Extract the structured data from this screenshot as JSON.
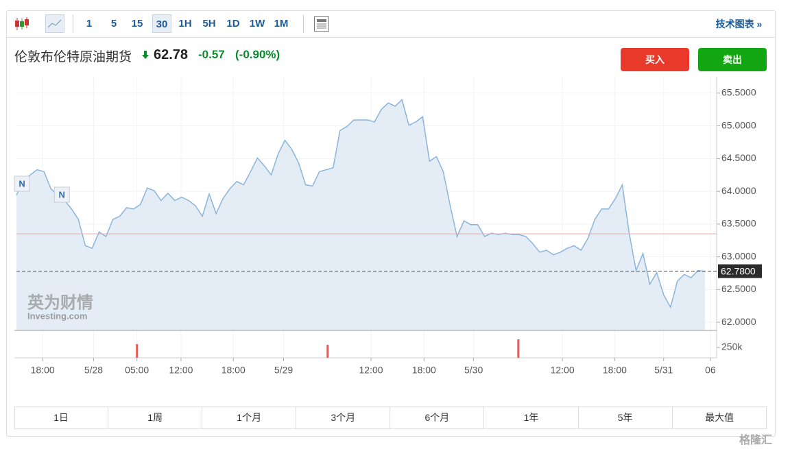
{
  "toolbar": {
    "intervals": [
      "1",
      "5",
      "15",
      "30",
      "1H",
      "5H",
      "1D",
      "1W",
      "1M"
    ],
    "active_interval": 3,
    "link": "技术图表 »"
  },
  "header": {
    "name": "伦敦布伦特原油期货",
    "price": "62.78",
    "change": "-0.57",
    "change_percent": "(-0.90%)"
  },
  "buttons": {
    "buy": "买入",
    "sell": "卖出"
  },
  "chart_data": {
    "type": "line",
    "series": [
      {
        "color": "#8ab4d9",
        "fill": "#e4edf6",
        "x": [
          0,
          1,
          2,
          3,
          4,
          5,
          6,
          7,
          8,
          9,
          10,
          11,
          12,
          13,
          14,
          15,
          16,
          17,
          18,
          19,
          20,
          21,
          22,
          23,
          24,
          25,
          26,
          27,
          28,
          29,
          30,
          31,
          32,
          33,
          34,
          35,
          36,
          37,
          38,
          39,
          40,
          41,
          42,
          43,
          44,
          45,
          46,
          47,
          48,
          49,
          50,
          51,
          52,
          53,
          54,
          55,
          56,
          57,
          58,
          59,
          60,
          61,
          62,
          63,
          64,
          65,
          66,
          67,
          68,
          69,
          70,
          71,
          72,
          73,
          74,
          75,
          76,
          77,
          78,
          79,
          80,
          81,
          82,
          83,
          84,
          85,
          86,
          87,
          88,
          89,
          90,
          91,
          92,
          93,
          94,
          95,
          96,
          97,
          98,
          99,
          100
        ],
        "values": [
          63.94,
          64.18,
          64.25,
          64.33,
          64.3,
          64.04,
          63.94,
          63.86,
          63.73,
          63.57,
          63.17,
          63.13,
          63.38,
          63.31,
          63.57,
          63.62,
          63.75,
          63.73,
          63.8,
          64.05,
          64.01,
          63.86,
          63.97,
          63.86,
          63.91,
          63.86,
          63.78,
          63.62,
          63.96,
          63.66,
          63.89,
          64.04,
          64.15,
          64.1,
          64.3,
          64.51,
          64.39,
          64.25,
          64.57,
          64.78,
          64.64,
          64.43,
          64.1,
          64.08,
          64.3,
          64.33,
          64.36,
          64.93,
          64.99,
          65.09,
          65.09,
          65.09,
          65.06,
          65.25,
          65.35,
          65.3,
          65.4,
          65.01,
          65.06,
          65.14,
          64.46,
          64.53,
          64.3,
          63.78,
          63.31,
          63.55,
          63.49,
          63.49,
          63.31,
          63.36,
          63.34,
          63.36,
          63.34,
          63.34,
          63.31,
          63.2,
          63.07,
          63.1,
          63.03,
          63.07,
          63.13,
          63.17,
          63.1,
          63.28,
          63.57,
          63.73,
          63.73,
          63.89,
          64.1,
          63.36,
          62.79,
          63.05,
          62.58,
          62.76,
          62.42,
          62.23,
          62.63,
          62.73,
          62.68,
          62.79,
          62.78
        ]
      }
    ],
    "xlim": [
      0,
      101.7
    ],
    "xticks": [
      {
        "value": 3.8,
        "label": "18:00"
      },
      {
        "value": 11.2,
        "label": "5/28"
      },
      {
        "value": 17.5,
        "label": "05:00"
      },
      {
        "value": 23.9,
        "label": "12:00"
      },
      {
        "value": 31.5,
        "label": "18:00"
      },
      {
        "value": 38.8,
        "label": "5/29"
      },
      {
        "value": 51.5,
        "label": "12:00"
      },
      {
        "value": 59.2,
        "label": "18:00"
      },
      {
        "value": 66.4,
        "label": "5/30"
      },
      {
        "value": 79.3,
        "label": "12:00"
      },
      {
        "value": 86.9,
        "label": "18:00"
      },
      {
        "value": 94,
        "label": "5/31"
      },
      {
        "value": 100.8,
        "label": "06"
      }
    ],
    "ylim": [
      61.875,
      65.75
    ],
    "yticks": [
      {
        "value": 62,
        "label": "62.0000"
      },
      {
        "value": 62.5,
        "label": "62.5000"
      },
      {
        "value": 63,
        "label": "63.0000"
      },
      {
        "value": 63.5,
        "label": "63.5000"
      },
      {
        "value": 64,
        "label": "64.0000"
      },
      {
        "value": 64.5,
        "label": "64.5000"
      },
      {
        "value": 65,
        "label": "65.0000"
      },
      {
        "value": 65.5,
        "label": "65.5000"
      }
    ],
    "grid": true,
    "previous_close": {
      "value": 63.35,
      "color": "#f4a3a3"
    },
    "last_price": {
      "value": 62.78,
      "label": "62.7800"
    },
    "markers": [
      {
        "x": 0.6,
        "label": "N"
      },
      {
        "x": 6.4,
        "label": "N"
      }
    ],
    "volume": {
      "color": "#e35b5b",
      "x": [
        17.5,
        45.2,
        72.9
      ],
      "values": [
        333000,
        317000,
        450000
      ],
      "ylim": [
        0,
        600000
      ],
      "yticks": [
        {
          "value": 250000,
          "label": "250k"
        }
      ]
    },
    "logo": {
      "cn": "英为财情",
      "en": "Investing.com"
    }
  },
  "range_tabs": [
    "1日",
    "1周",
    "1个月",
    "3个月",
    "6个月",
    "1年",
    "5年",
    "最大值"
  ],
  "watermark": "格隆汇"
}
